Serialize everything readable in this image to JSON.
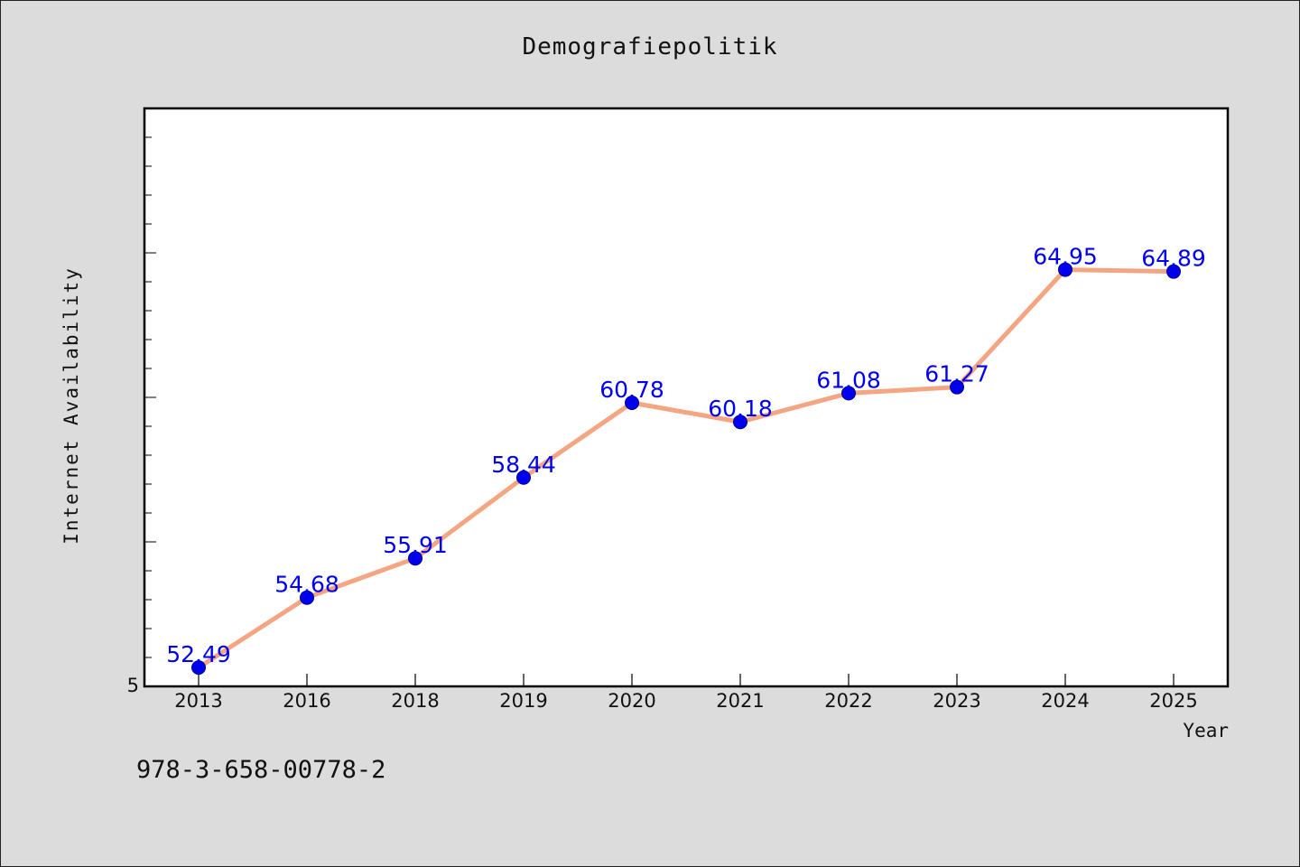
{
  "page": {
    "footer_code": "978-3-658-00778-2"
  },
  "chart_data": {
    "type": "line",
    "title": "Demografiepolitik",
    "xlabel": "Year",
    "ylabel": "Internet Availability",
    "categories": [
      "2013",
      "2016",
      "2018",
      "2019",
      "2020",
      "2021",
      "2022",
      "2023",
      "2024",
      "2025"
    ],
    "series": [
      {
        "values": [
          52.49,
          54.68,
          55.91,
          58.44,
          60.78,
          60.18,
          61.08,
          61.27,
          64.95,
          64.89
        ],
        "labels": [
          "52.49",
          "54.68",
          "55.91",
          "58.44",
          "60.78",
          "60.18",
          "61.08",
          "61.27",
          "64.95",
          "64.89"
        ],
        "line_color": "#f4a582",
        "marker_color": "#0000ee"
      }
    ],
    "y_tick_labels": [
      "5"
    ],
    "ylim": [
      51.9,
      70.0
    ],
    "grid": false,
    "legend": "none",
    "background_color": "#dcdcdc",
    "plot_area_color": "#ffffff",
    "label_color": "#0000ee"
  }
}
